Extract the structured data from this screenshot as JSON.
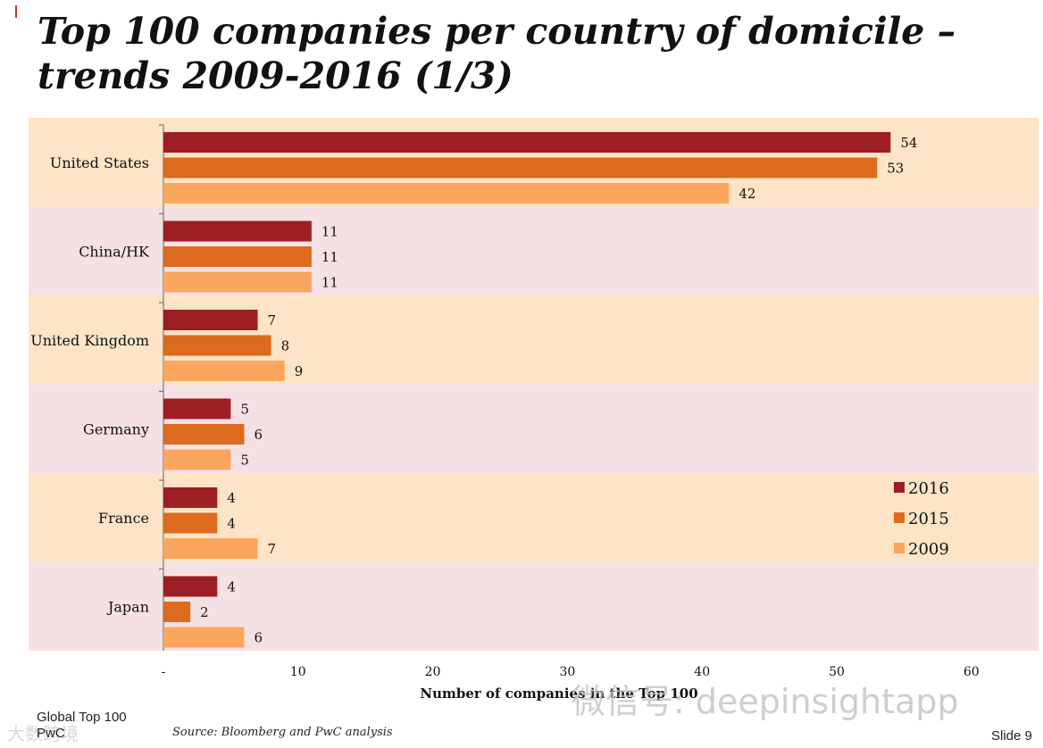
{
  "slide": {
    "title_line1": "Top 100 companies per country of domicile –",
    "title_line2": "trends 2009-2016 (1/3)",
    "footer_line1": "Global Top 100",
    "footer_line2": "PwC",
    "source": "Source: Bloomberg and PwC analysis",
    "slide_number": "Slide 9",
    "watermark": "微信号: deepinsightapp",
    "watermark_corner": "大数跨境"
  },
  "chart_data": {
    "type": "bar",
    "orientation": "horizontal",
    "categories": [
      "United States",
      "China/HK",
      "United Kingdom",
      "Germany",
      "France",
      "Japan"
    ],
    "series": [
      {
        "name": "2016",
        "color": "#9e1f23",
        "values": [
          54,
          11,
          7,
          5,
          4,
          4
        ]
      },
      {
        "name": "2015",
        "color": "#dc6a1f",
        "values": [
          53,
          11,
          8,
          6,
          4,
          2
        ]
      },
      {
        "name": "2009",
        "color": "#fba65e",
        "values": [
          42,
          11,
          9,
          5,
          7,
          6
        ]
      }
    ],
    "xlabel": "Number of companies in the Top 100",
    "xlim": [
      0,
      60
    ],
    "xticks": [
      0,
      10,
      20,
      30,
      40,
      50,
      60
    ],
    "xtick_labels": [
      "-",
      "10",
      "20",
      "30",
      "40",
      "50",
      "60"
    ],
    "band_colors": [
      "#fde4c6",
      "#f5e1e4"
    ],
    "legend_position": "bottom-right"
  }
}
